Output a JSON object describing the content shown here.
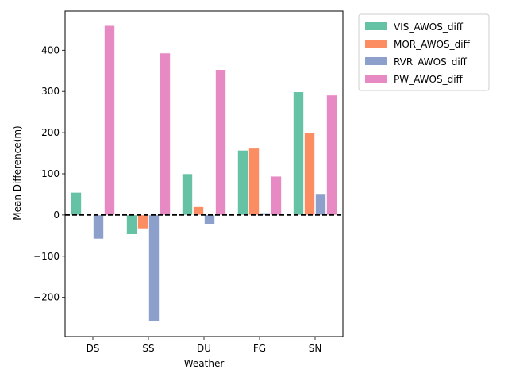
{
  "chart_data": {
    "type": "bar",
    "xlabel": "Weather",
    "ylabel": "Mean Difference(m)",
    "categories": [
      "DS",
      "SS",
      "DU",
      "FG",
      "SN"
    ],
    "ylim": [
      -295,
      495
    ],
    "yticks": [
      -200,
      -100,
      0,
      100,
      200,
      300,
      400
    ],
    "legend_position": "outside-top-right",
    "grid": false,
    "zero_line": {
      "value": 0,
      "style": "dashed",
      "color": "#000000"
    },
    "series": [
      {
        "name": "VIS_AWOS_diff",
        "color": "#66c2a5",
        "values": [
          55,
          -47,
          100,
          157,
          299
        ]
      },
      {
        "name": "MOR_AWOS_diff",
        "color": "#fc8d62",
        "values": [
          0,
          -33,
          20,
          162,
          200
        ]
      },
      {
        "name": "RVR_AWOS_diff",
        "color": "#8da0cb",
        "values": [
          -58,
          -258,
          -22,
          5,
          50
        ]
      },
      {
        "name": "PW_AWOS_diff",
        "color": "#e78ac3",
        "values": [
          460,
          393,
          353,
          94,
          291
        ]
      }
    ]
  }
}
